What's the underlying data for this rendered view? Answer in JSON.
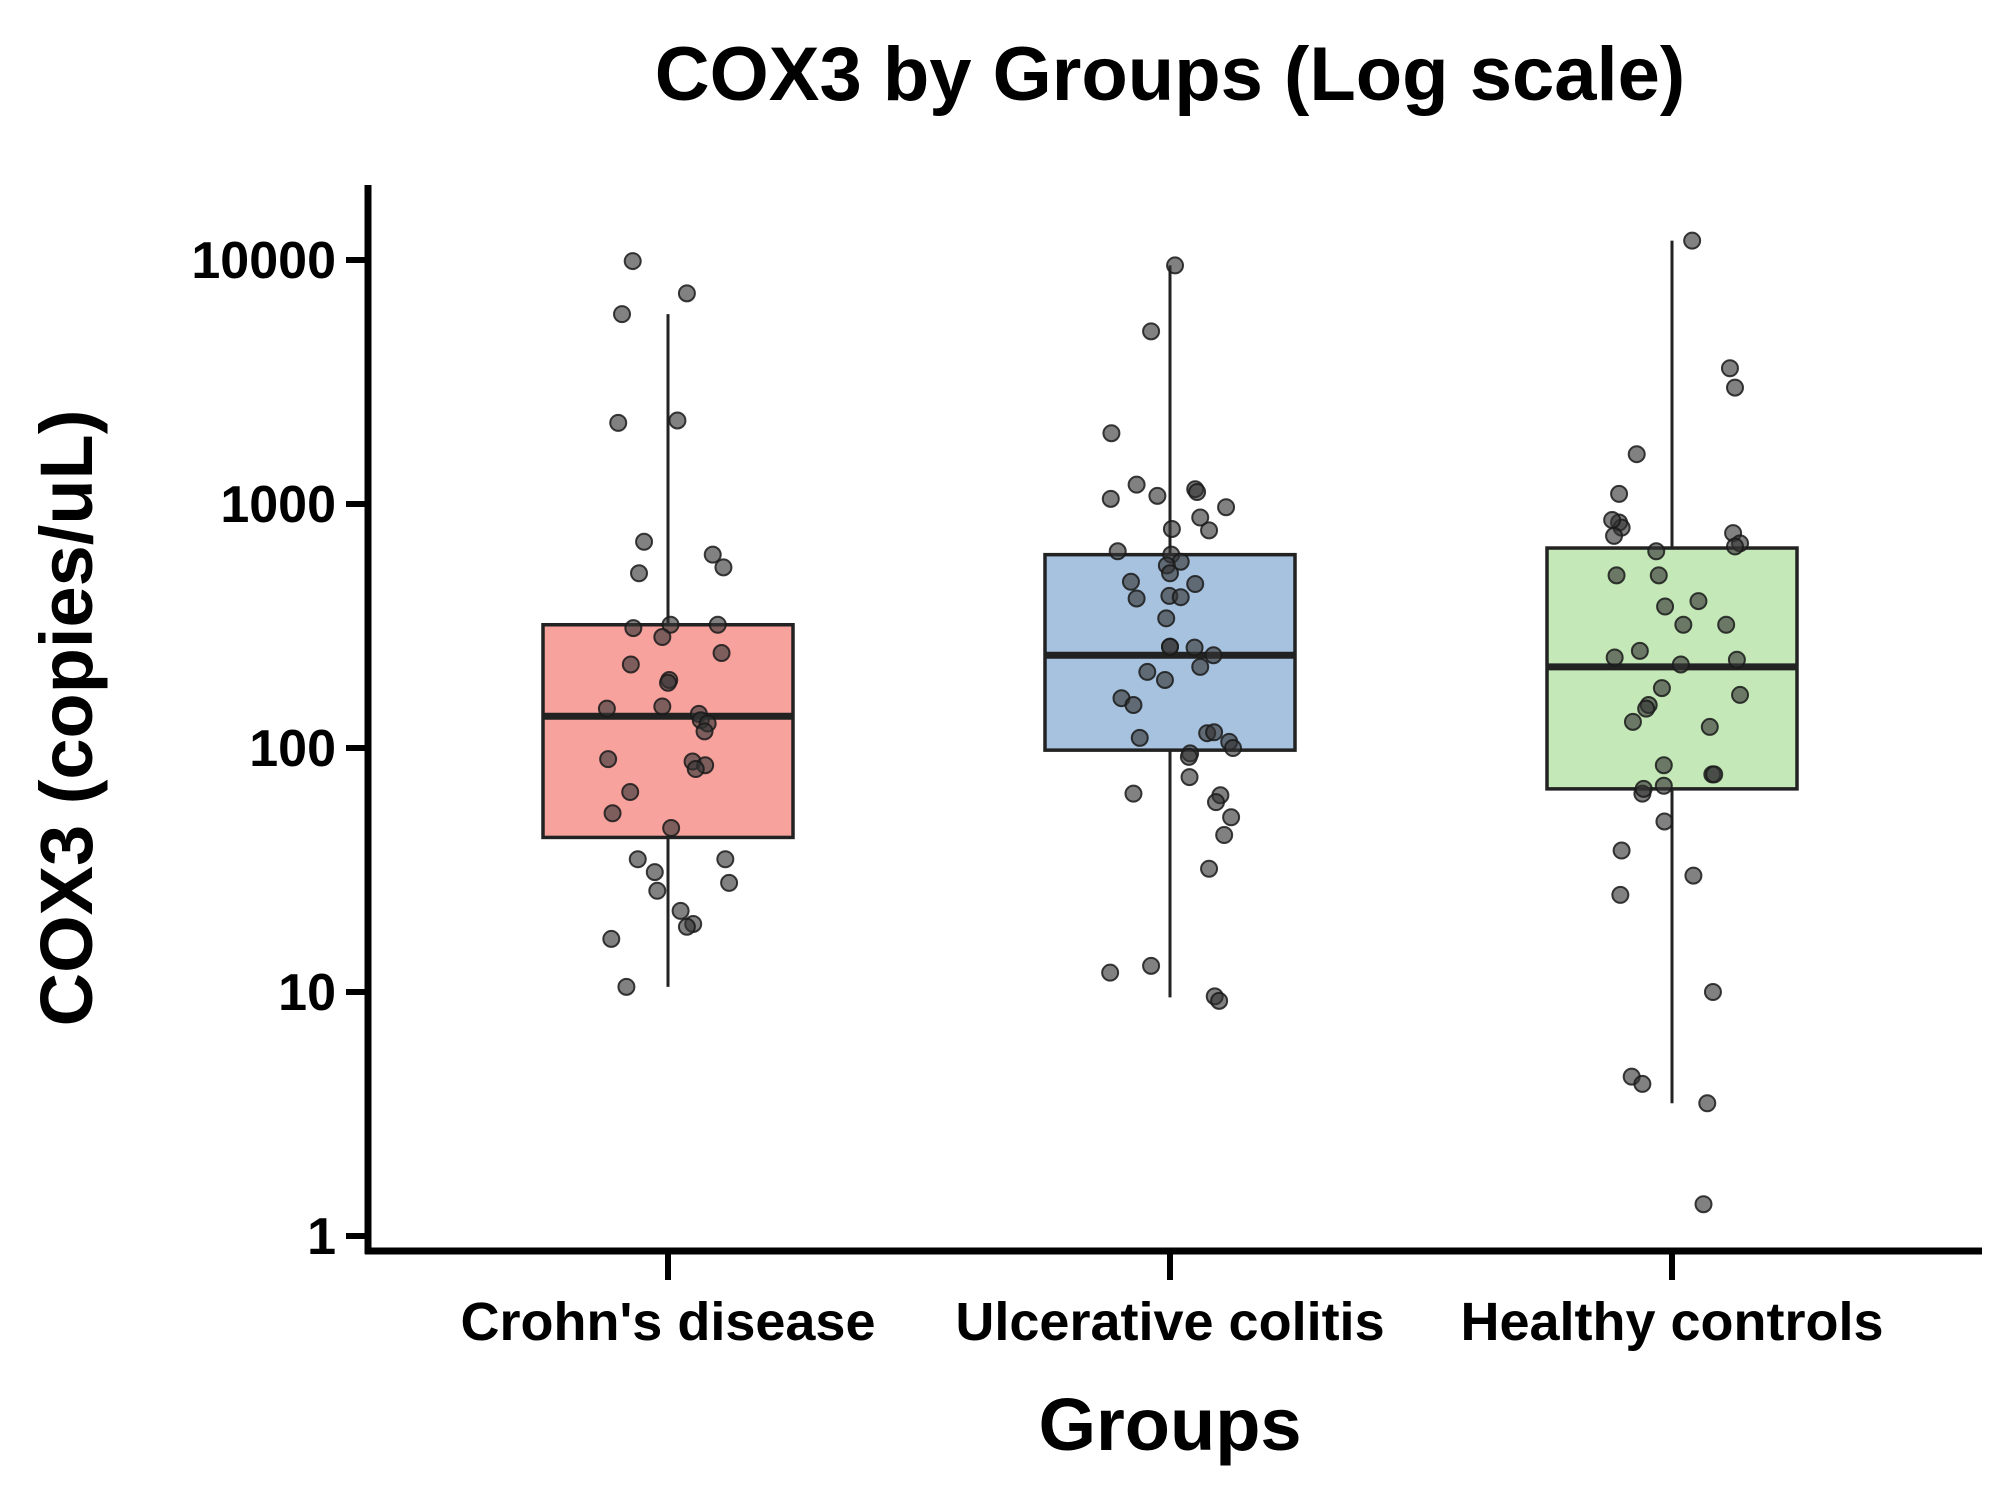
{
  "chart_data": {
    "type": "box",
    "title": "COX3 by Groups (Log scale)",
    "xlabel": "Groups",
    "ylabel": "COX3 (copies/uL)",
    "yscale": "log",
    "ylim": [
      0.8,
      20000
    ],
    "yticks": [
      1,
      10,
      100,
      1000,
      10000
    ],
    "ytick_labels": [
      "1",
      "10",
      "100",
      "1000",
      "10000"
    ],
    "grid": false,
    "categories": [
      "Crohn's disease",
      "Ulcerative colitis",
      "Healthy controls"
    ],
    "colors": {
      "box_fills": [
        "#f7a29d",
        "#a7c2de",
        "#c4e8b7"
      ],
      "stroke": "#222222",
      "point": "#333333"
    },
    "boxes": [
      {
        "category": "Crohn's disease",
        "q1": 43,
        "median": 135,
        "q3": 320,
        "whisker_low": 10.5,
        "whisker_high": 6000
      },
      {
        "category": "Ulcerative colitis",
        "q1": 98,
        "median": 240,
        "q3": 620,
        "whisker_low": 9.5,
        "whisker_high": 9500
      },
      {
        "category": "Healthy controls",
        "q1": 68,
        "median": 215,
        "q3": 660,
        "whisker_low": 3.5,
        "whisker_high": 12000
      }
    ],
    "points": [
      {
        "category": "Crohn's disease",
        "values": [
          [
            -0.056,
            9900
          ],
          [
            0.03,
            7300
          ],
          [
            -0.073,
            6000
          ],
          [
            -0.079,
            2150
          ],
          [
            0.015,
            2200
          ],
          [
            -0.038,
            700
          ],
          [
            -0.046,
            520
          ],
          [
            0.071,
            620
          ],
          [
            0.088,
            550
          ],
          [
            0.004,
            320
          ],
          [
            -0.055,
            310
          ],
          [
            -0.009,
            285
          ],
          [
            0.079,
            320
          ],
          [
            0.085,
            245
          ],
          [
            -0.059,
            220
          ],
          [
            0.002,
            190
          ],
          [
            0.0,
            185
          ],
          [
            -0.097,
            145
          ],
          [
            -0.009,
            148
          ],
          [
            0.049,
            138
          ],
          [
            0.052,
            130
          ],
          [
            0.063,
            126
          ],
          [
            0.058,
            117
          ],
          [
            -0.095,
            90
          ],
          [
            0.039,
            88
          ],
          [
            0.059,
            85
          ],
          [
            0.044,
            82
          ],
          [
            -0.06,
            66
          ],
          [
            -0.088,
            54
          ],
          [
            0.005,
            47
          ],
          [
            0.091,
            35
          ],
          [
            -0.048,
            35
          ],
          [
            -0.021,
            31
          ],
          [
            -0.017,
            26
          ],
          [
            0.097,
            28
          ],
          [
            0.02,
            21.5
          ],
          [
            0.04,
            19
          ],
          [
            0.03,
            18.5
          ],
          [
            -0.09,
            16.5
          ],
          [
            -0.066,
            10.5
          ]
        ]
      },
      {
        "category": "Ulcerative colitis",
        "values": [
          [
            0.008,
            9500
          ],
          [
            -0.03,
            5100
          ],
          [
            -0.093,
            1950
          ],
          [
            -0.053,
            1200
          ],
          [
            -0.094,
            1050
          ],
          [
            -0.02,
            1080
          ],
          [
            0.04,
            1150
          ],
          [
            0.043,
            1120
          ],
          [
            0.048,
            880
          ],
          [
            0.089,
            970
          ],
          [
            0.062,
            780
          ],
          [
            0.003,
            790
          ],
          [
            -0.083,
            640
          ],
          [
            0.002,
            620
          ],
          [
            0.017,
            580
          ],
          [
            -0.005,
            560
          ],
          [
            0.0,
            520
          ],
          [
            -0.062,
            480
          ],
          [
            0.04,
            470
          ],
          [
            -0.053,
            410
          ],
          [
            -0.001,
            420
          ],
          [
            0.017,
            415
          ],
          [
            -0.006,
            340
          ],
          [
            0.0,
            260
          ],
          [
            0.0,
            260
          ],
          [
            0.039,
            258
          ],
          [
            0.069,
            240
          ],
          [
            0.048,
            215
          ],
          [
            -0.036,
            205
          ],
          [
            -0.008,
            190
          ],
          [
            -0.077,
            160
          ],
          [
            -0.058,
            150
          ],
          [
            0.059,
            115
          ],
          [
            0.07,
            116
          ],
          [
            0.094,
            106
          ],
          [
            -0.048,
            110
          ],
          [
            0.1,
            100
          ],
          [
            0.032,
            95
          ],
          [
            0.03,
            92
          ],
          [
            0.031,
            76
          ],
          [
            -0.058,
            65
          ],
          [
            0.08,
            64
          ],
          [
            0.073,
            60
          ],
          [
            0.097,
            52
          ],
          [
            0.086,
            44
          ],
          [
            0.062,
            32
          ],
          [
            -0.095,
            12
          ],
          [
            -0.03,
            12.8
          ],
          [
            0.071,
            9.6
          ],
          [
            0.078,
            9.2
          ]
        ]
      },
      {
        "category": "Healthy controls",
        "values": [
          [
            0.032,
            12000
          ],
          [
            0.092,
            3600
          ],
          [
            0.1,
            3000
          ],
          [
            -0.056,
            1600
          ],
          [
            -0.084,
            1100
          ],
          [
            -0.084,
            840
          ],
          [
            -0.08,
            800
          ],
          [
            -0.095,
            860
          ],
          [
            0.097,
            760
          ],
          [
            -0.092,
            740
          ],
          [
            0.108,
            690
          ],
          [
            0.1,
            670
          ],
          [
            -0.025,
            640
          ],
          [
            -0.088,
            510
          ],
          [
            -0.021,
            510
          ],
          [
            0.042,
            400
          ],
          [
            -0.011,
            380
          ],
          [
            0.086,
            320
          ],
          [
            0.018,
            320
          ],
          [
            -0.051,
            250
          ],
          [
            -0.091,
            235
          ],
          [
            0.103,
            230
          ],
          [
            0.014,
            220
          ],
          [
            -0.016,
            176
          ],
          [
            0.108,
            165
          ],
          [
            -0.037,
            150
          ],
          [
            -0.041,
            145
          ],
          [
            -0.062,
            128
          ],
          [
            0.06,
            122
          ],
          [
            -0.013,
            85
          ],
          [
            0.064,
            78
          ],
          [
            0.067,
            78
          ],
          [
            -0.013,
            70
          ],
          [
            -0.047,
            65
          ],
          [
            -0.045,
            68
          ],
          [
            -0.012,
            50
          ],
          [
            -0.08,
            38
          ],
          [
            0.034,
            30
          ],
          [
            -0.082,
            25
          ],
          [
            0.065,
            10
          ],
          [
            -0.064,
            4.5
          ],
          [
            -0.047,
            4.2
          ],
          [
            0.056,
            3.5
          ],
          [
            0.05,
            1.35
          ]
        ]
      }
    ]
  }
}
